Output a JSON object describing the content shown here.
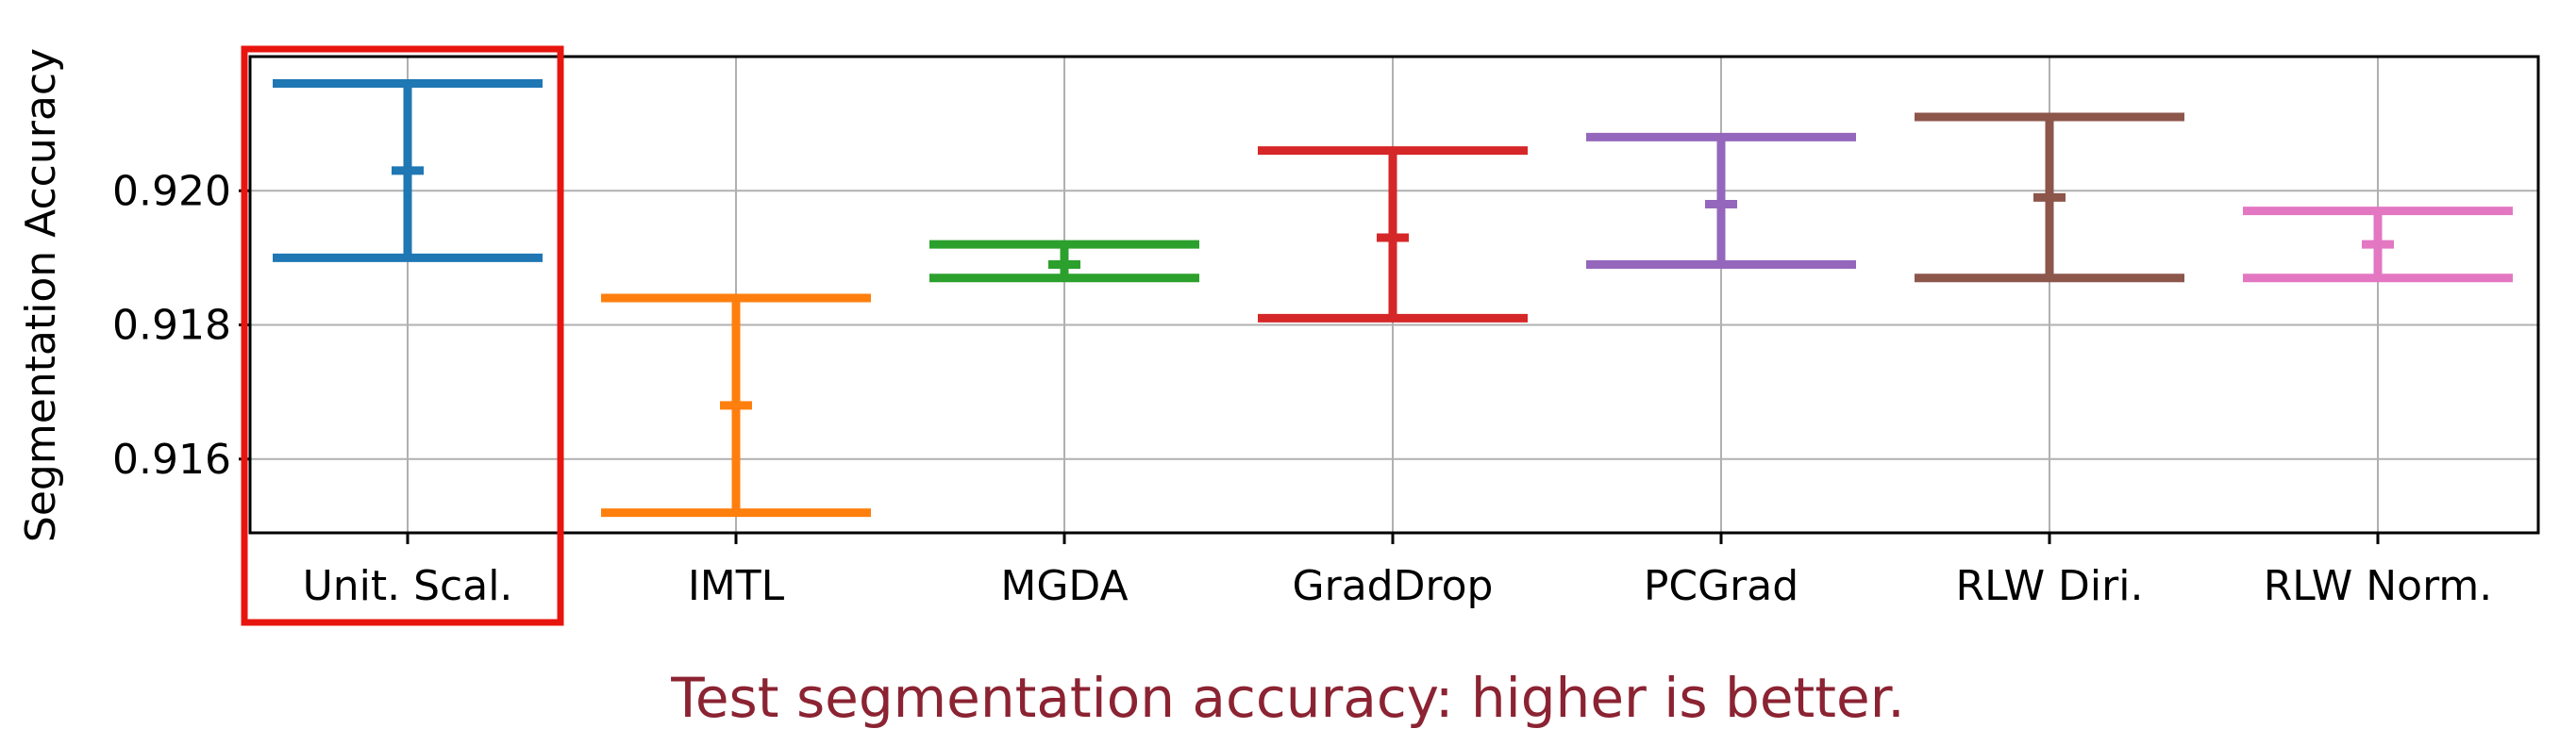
{
  "chart_data": {
    "type": "errorbar",
    "ylabel": "Segmentation Accuracy",
    "xlabel": "",
    "title": "",
    "ylim": [
      0.9149,
      0.922
    ],
    "yticks": [
      0.916,
      0.918,
      0.92
    ],
    "ytick_labels": [
      "0.916",
      "0.918",
      "0.920"
    ],
    "grid": true,
    "categories": [
      "Unit. Scal.",
      "IMTL",
      "MGDA",
      "GradDrop",
      "PCGrad",
      "RLW Diri.",
      "RLW Norm."
    ],
    "series": [
      {
        "category": "Unit. Scal.",
        "mean": 0.9203,
        "lower": 0.919,
        "upper": 0.9216,
        "color": "#1f77b4"
      },
      {
        "category": "IMTL",
        "mean": 0.9168,
        "lower": 0.9152,
        "upper": 0.9184,
        "color": "#ff7f0e"
      },
      {
        "category": "MGDA",
        "mean": 0.9189,
        "lower": 0.9187,
        "upper": 0.9192,
        "color": "#2ca02c"
      },
      {
        "category": "GradDrop",
        "mean": 0.9193,
        "lower": 0.9181,
        "upper": 0.9206,
        "color": "#d62728"
      },
      {
        "category": "PCGrad",
        "mean": 0.9198,
        "lower": 0.9189,
        "upper": 0.9208,
        "color": "#9467bd"
      },
      {
        "category": "RLW Diri.",
        "mean": 0.9199,
        "lower": 0.9187,
        "upper": 0.9211,
        "color": "#8c564b"
      },
      {
        "category": "RLW Norm.",
        "mean": 0.9192,
        "lower": 0.9187,
        "upper": 0.9197,
        "color": "#e377c2"
      }
    ],
    "highlight": {
      "category": "Unit. Scal.",
      "color": "#e8150f"
    }
  },
  "caption": {
    "text": "Test segmentation accuracy: higher is better.",
    "color": "#8b2332"
  }
}
